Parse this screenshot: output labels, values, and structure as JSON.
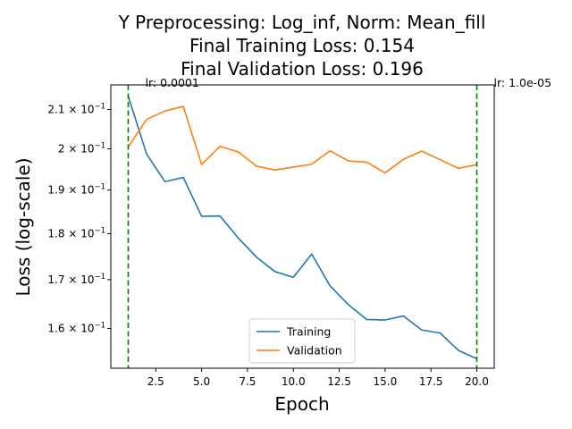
{
  "chart_data": {
    "type": "line",
    "title_lines": [
      "Y Preprocessing: Log_inf, Norm: Mean_fill",
      "Final Training Loss: 0.154",
      "Final Validation Loss: 0.196"
    ],
    "xlabel": "Epoch",
    "ylabel": "Loss (log-scale)",
    "yscale": "log",
    "xlim": [
      0.05,
      20.95
    ],
    "ylim": [
      0.1523,
      0.2165
    ],
    "x_ticks": [
      2.5,
      5.0,
      7.5,
      10.0,
      12.5,
      15.0,
      17.5,
      20.0
    ],
    "x_tick_labels": [
      "2.5",
      "5.0",
      "7.5",
      "10.0",
      "12.5",
      "15.0",
      "17.5",
      "20.0"
    ],
    "y_ticks": [
      0.16,
      0.17,
      0.18,
      0.19,
      0.2,
      0.21
    ],
    "y_tick_labels": [
      {
        "mant": "1.6 × 10",
        "exp": "−1"
      },
      {
        "mant": "1.7 × 10",
        "exp": "−1"
      },
      {
        "mant": "1.8 × 10",
        "exp": "−1"
      },
      {
        "mant": "1.9 × 10",
        "exp": "−1"
      },
      {
        "mant": "2 × 10",
        "exp": "−1"
      },
      {
        "mant": "2.1 × 10",
        "exp": "−1"
      }
    ],
    "x": [
      1,
      2,
      3,
      4,
      5,
      6,
      7,
      8,
      9,
      10,
      11,
      12,
      13,
      14,
      15,
      16,
      17,
      18,
      19,
      20
    ],
    "series": [
      {
        "name": "Training",
        "color": "#1f77b4",
        "values": [
          0.2135,
          0.1987,
          0.192,
          0.193,
          0.1839,
          0.184,
          0.179,
          0.1748,
          0.1717,
          0.1705,
          0.1755,
          0.1687,
          0.1648,
          0.1618,
          0.1617,
          0.1625,
          0.1597,
          0.1591,
          0.1557,
          0.1541
        ]
      },
      {
        "name": "Validation",
        "color": "#ff7f0e",
        "values": [
          0.2005,
          0.2074,
          0.2096,
          0.2108,
          0.1961,
          0.2006,
          0.1992,
          0.1957,
          0.1948,
          0.1955,
          0.1962,
          0.1995,
          0.197,
          0.1967,
          0.1941,
          0.1974,
          0.1994,
          0.1973,
          0.1952,
          0.1961
        ]
      }
    ],
    "vlines": [
      {
        "x": 1,
        "color": "#008000",
        "label": "lr: 0.0001"
      },
      {
        "x": 20,
        "color": "#008000",
        "label": "lr: 1.0e-05"
      }
    ],
    "legend_position": "lower center",
    "grid": false
  }
}
